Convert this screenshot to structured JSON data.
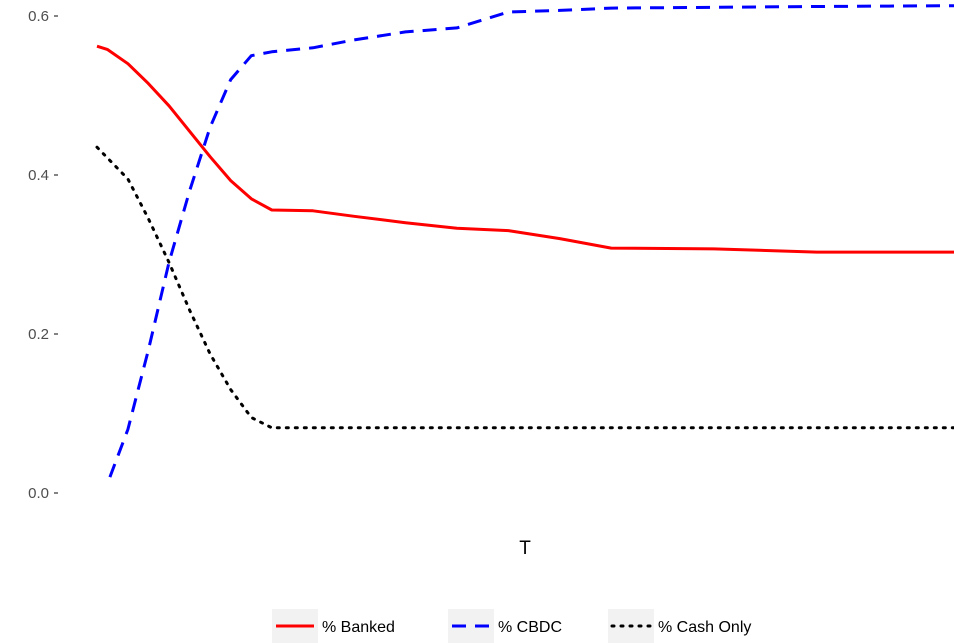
{
  "chart_data": {
    "type": "line",
    "title": "",
    "xlabel": "T",
    "ylabel": "",
    "ylim": [
      0,
      0.6
    ],
    "xlim": [
      0,
      100
    ],
    "y_ticks": [
      {
        "value": 0.0,
        "label": "0.0"
      },
      {
        "value": 0.2,
        "label": "0.2"
      },
      {
        "value": 0.4,
        "label": "0.4"
      },
      {
        "value": 0.6,
        "label": "0.6"
      }
    ],
    "grid": false,
    "legend_position": "bottom",
    "series": [
      {
        "name": "% Banked",
        "color": "#ff0000",
        "linestyle": "solid",
        "x": [
          0,
          1.2,
          3.6,
          6.0,
          8.4,
          10.8,
          13.2,
          15.6,
          18.0,
          20.4,
          25.2,
          30.0,
          36.0,
          42.0,
          48.0,
          54.0,
          60.0,
          72.0,
          84.0,
          100.0
        ],
        "y": [
          0.562,
          0.558,
          0.54,
          0.515,
          0.487,
          0.455,
          0.423,
          0.393,
          0.37,
          0.356,
          0.355,
          0.348,
          0.34,
          0.333,
          0.33,
          0.32,
          0.308,
          0.307,
          0.303,
          0.303
        ]
      },
      {
        "name": "% CBDC",
        "color": "#0000ff",
        "linestyle": "dashed",
        "x": [
          1.5,
          3.6,
          6.0,
          8.4,
          10.8,
          13.2,
          15.6,
          18.0,
          20.4,
          25.2,
          30.0,
          36.0,
          42.0,
          48.0,
          54.0,
          60.0,
          72.0,
          84.0,
          100.0
        ],
        "y": [
          0.02,
          0.08,
          0.18,
          0.29,
          0.38,
          0.46,
          0.52,
          0.55,
          0.555,
          0.56,
          0.57,
          0.58,
          0.585,
          0.605,
          0.607,
          0.61,
          0.611,
          0.612,
          0.613
        ]
      },
      {
        "name": "% Cash Only",
        "color": "#000000",
        "linestyle": "dotted",
        "x": [
          0,
          3.6,
          6.0,
          8.4,
          10.8,
          13.2,
          15.6,
          18.0,
          20.4,
          25.2,
          36.0,
          50.0,
          72.0,
          100.0
        ],
        "y": [
          0.435,
          0.395,
          0.345,
          0.29,
          0.23,
          0.175,
          0.13,
          0.095,
          0.082,
          0.082,
          0.082,
          0.082,
          0.082,
          0.082
        ]
      }
    ]
  }
}
